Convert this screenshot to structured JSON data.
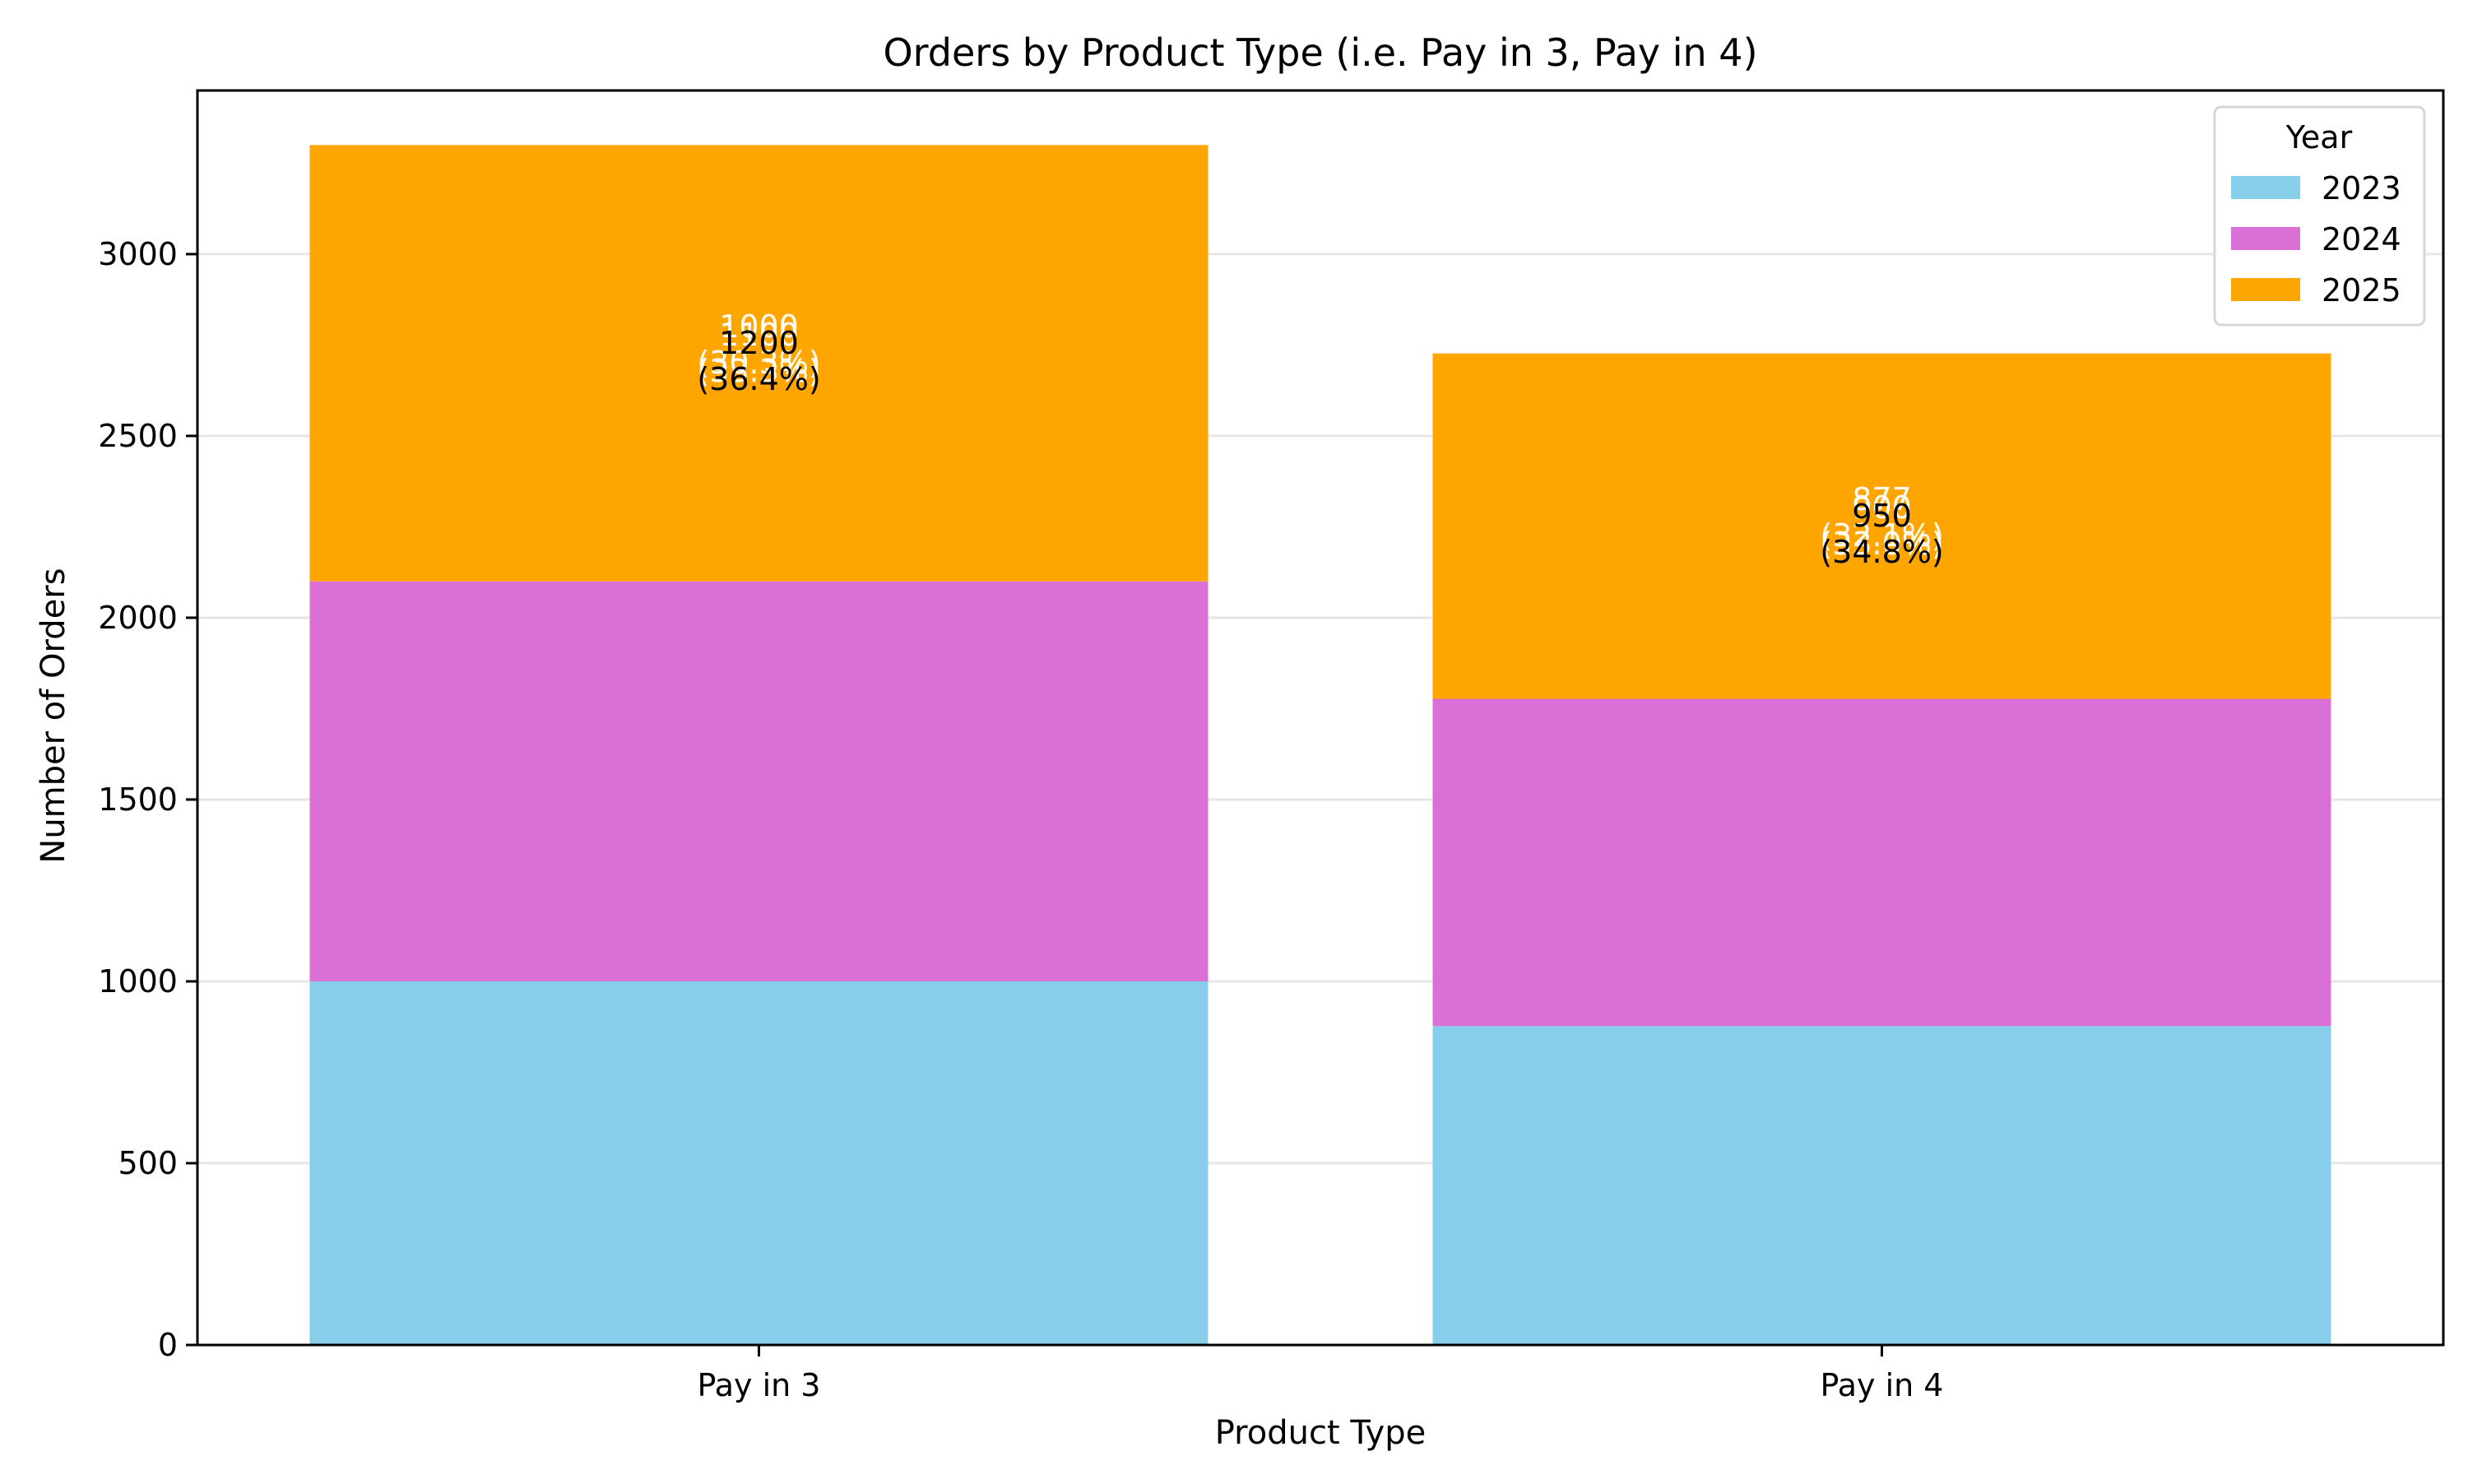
{
  "chart_data": {
    "type": "bar",
    "stacked": true,
    "title": "Orders by Product Type (i.e. Pay in 3, Pay in 4)",
    "xlabel": "Product Type",
    "ylabel": "Number of Orders",
    "categories": [
      "Pay in 3",
      "Pay in 4"
    ],
    "ylim": [
      0,
      3450
    ],
    "yticks": [
      0,
      500,
      1000,
      1500,
      2000,
      2500,
      3000
    ],
    "grid": "horizontal",
    "legend": {
      "title": "Year",
      "placement": "top-right"
    },
    "series": [
      {
        "name": "2023",
        "color": "#87CEEB",
        "values": [
          1000,
          877
        ]
      },
      {
        "name": "2024",
        "color": "#DA70D6",
        "values": [
          1100,
          900
        ]
      },
      {
        "name": "2025",
        "color": "#FFA500",
        "values": [
          1200,
          950
        ]
      }
    ],
    "data_labels": [
      {
        "category": "Pay in 3",
        "hidden_labels": [
          [
            "1000",
            "(30.3%)"
          ],
          [
            "1100",
            "(33.3%)"
          ]
        ],
        "visible_label": [
          "1200",
          "(36.4%)"
        ]
      },
      {
        "category": "Pay in 4",
        "hidden_labels": [
          [
            "877",
            "(32.1%)"
          ],
          [
            "900",
            "(33.0%)"
          ]
        ],
        "visible_label": [
          "950",
          "(34.8%)"
        ]
      }
    ]
  }
}
